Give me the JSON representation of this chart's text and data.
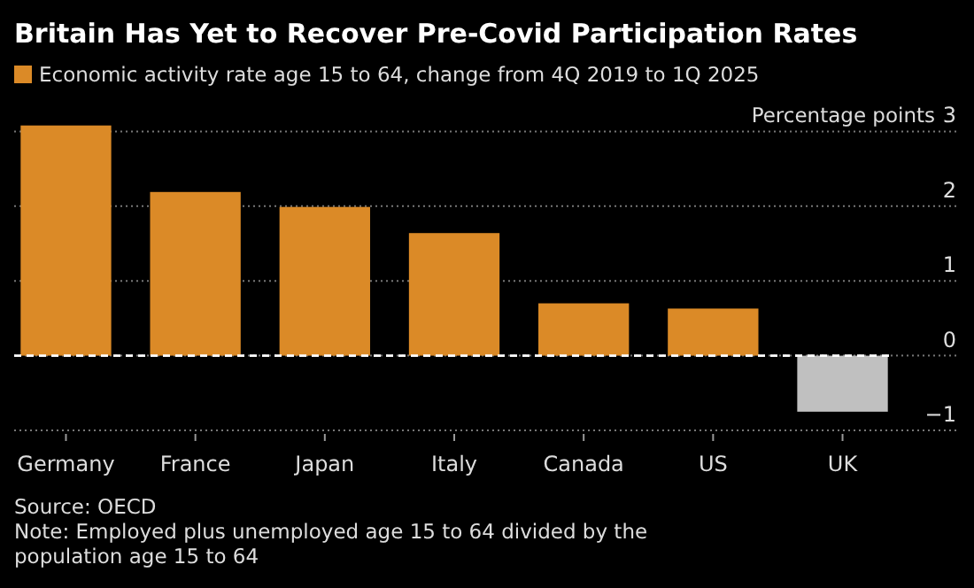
{
  "chart_data": {
    "type": "bar",
    "title": "Britain Has Yet to Recover Pre-Covid Participation Rates",
    "ylabel": "Percentage points",
    "categories": [
      "Germany",
      "France",
      "Japan",
      "Italy",
      "Canada",
      "US",
      "UK"
    ],
    "series": [
      {
        "name": "Economic activity rate age 15 to 64, change from 4Q 2019 to 1Q 2025",
        "color": "#db8a27",
        "colors": [
          "#db8a27",
          "#db8a27",
          "#db8a27",
          "#db8a27",
          "#db8a27",
          "#db8a27",
          "#c0c0c0"
        ],
        "values": [
          3.08,
          2.19,
          1.99,
          1.64,
          0.7,
          0.63,
          -0.75
        ]
      }
    ],
    "ylim": [
      -1,
      3.1
    ],
    "yticks": [
      -1,
      0,
      1,
      2,
      3
    ],
    "grid": "y",
    "legend": "top left",
    "ref_lines": [
      {
        "axis": "y",
        "value": 0,
        "label": null,
        "color": "#ffffff",
        "line_style": "dashed"
      }
    ],
    "annotations": [
      "Source: OECD",
      "Note: Employed plus unemployed age 15 to 64 divided by the population age 15 to 64"
    ]
  }
}
